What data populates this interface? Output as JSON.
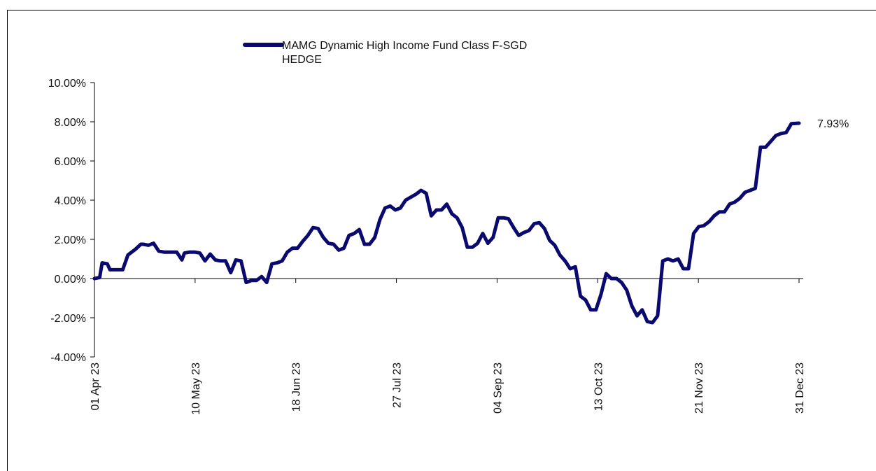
{
  "chart_data": {
    "type": "line",
    "title": "",
    "xlabel": "",
    "ylabel": "",
    "ylim": [
      -4,
      10
    ],
    "y_ticks": [
      10,
      8,
      6,
      4,
      2,
      0,
      -2,
      -4
    ],
    "y_tick_labels": [
      "10.00%",
      "8.00%",
      "6.00%",
      "4.00%",
      "2.00%",
      "0.00%",
      "-2.00%",
      "-4.00%"
    ],
    "x_tick_labels": [
      "01 Apr 23",
      "10 May 23",
      "18 Jun 23",
      "27 Jul 23",
      "04 Sep 23",
      "13 Oct 23",
      "21 Nov 23",
      "31 Dec 23"
    ],
    "x_range": [
      "2023-04-01",
      "2023-12-31"
    ],
    "legend": {
      "position": "top-center",
      "label_line1": "MAMG Dynamic High Income Fund Class F-SGD",
      "label_line2": "HEDGE"
    },
    "end_label": "7.93%",
    "color": "#0a0a6e",
    "grid": false,
    "series": [
      {
        "name": "MAMG Dynamic High Income Fund Class F-SGD HEDGE",
        "x": [
          "2023-04-01",
          "2023-04-03",
          "2023-04-04",
          "2023-04-06",
          "2023-04-07",
          "2023-04-10",
          "2023-04-12",
          "2023-04-14",
          "2023-04-17",
          "2023-04-19",
          "2023-04-20",
          "2023-04-22",
          "2023-04-24",
          "2023-04-26",
          "2023-04-28",
          "2023-05-01",
          "2023-05-03",
          "2023-05-05",
          "2023-05-06",
          "2023-05-08",
          "2023-05-10",
          "2023-05-12",
          "2023-05-14",
          "2023-05-16",
          "2023-05-18",
          "2023-05-20",
          "2023-05-22",
          "2023-05-24",
          "2023-05-26",
          "2023-05-28",
          "2023-05-30",
          "2023-06-01",
          "2023-06-03",
          "2023-06-05",
          "2023-06-07",
          "2023-06-09",
          "2023-06-11",
          "2023-06-13",
          "2023-06-15",
          "2023-06-17",
          "2023-06-19",
          "2023-06-21",
          "2023-06-23",
          "2023-06-25",
          "2023-06-27",
          "2023-06-29",
          "2023-07-01",
          "2023-07-03",
          "2023-07-05",
          "2023-07-07",
          "2023-07-09",
          "2023-07-11",
          "2023-07-13",
          "2023-07-15",
          "2023-07-17",
          "2023-07-19",
          "2023-07-21",
          "2023-07-23",
          "2023-07-25",
          "2023-07-27",
          "2023-07-29",
          "2023-07-31",
          "2023-08-02",
          "2023-08-04",
          "2023-08-06",
          "2023-08-08",
          "2023-08-10",
          "2023-08-12",
          "2023-08-14",
          "2023-08-16",
          "2023-08-18",
          "2023-08-20",
          "2023-08-22",
          "2023-08-24",
          "2023-08-26",
          "2023-08-28",
          "2023-08-30",
          "2023-09-01",
          "2023-09-03",
          "2023-09-05",
          "2023-09-07",
          "2023-09-09",
          "2023-09-11",
          "2023-09-13",
          "2023-09-15",
          "2023-09-17",
          "2023-09-19",
          "2023-09-21",
          "2023-09-23",
          "2023-09-25",
          "2023-09-27",
          "2023-09-29",
          "2023-10-01",
          "2023-10-03",
          "2023-10-05",
          "2023-10-07",
          "2023-10-09",
          "2023-10-11",
          "2023-10-13",
          "2023-10-15",
          "2023-10-17",
          "2023-10-19",
          "2023-10-21",
          "2023-10-23",
          "2023-10-25",
          "2023-10-27",
          "2023-10-29",
          "2023-10-31",
          "2023-11-02",
          "2023-11-04",
          "2023-11-06",
          "2023-11-08",
          "2023-11-10",
          "2023-11-12",
          "2023-11-14",
          "2023-11-16",
          "2023-11-18",
          "2023-11-20",
          "2023-11-22",
          "2023-11-24",
          "2023-11-26",
          "2023-11-28",
          "2023-11-30",
          "2023-12-02",
          "2023-12-04",
          "2023-12-06",
          "2023-12-08",
          "2023-12-10",
          "2023-12-12",
          "2023-12-14",
          "2023-12-16",
          "2023-12-18",
          "2023-12-20",
          "2023-12-22",
          "2023-12-24",
          "2023-12-26",
          "2023-12-28",
          "2023-12-31"
        ],
        "values": [
          0.0,
          0.05,
          0.8,
          0.75,
          0.45,
          0.45,
          0.45,
          1.2,
          1.5,
          1.75,
          1.75,
          1.7,
          1.8,
          1.4,
          1.35,
          1.35,
          1.35,
          0.95,
          1.3,
          1.35,
          1.35,
          1.3,
          0.9,
          1.25,
          0.95,
          0.9,
          0.9,
          0.3,
          0.95,
          0.9,
          -0.2,
          -0.1,
          -0.1,
          0.1,
          -0.2,
          0.75,
          0.8,
          0.9,
          1.35,
          1.55,
          1.55,
          1.9,
          2.2,
          2.6,
          2.55,
          2.1,
          1.8,
          1.75,
          1.45,
          1.55,
          2.2,
          2.3,
          2.5,
          1.75,
          1.75,
          2.1,
          3.0,
          3.6,
          3.7,
          3.5,
          3.6,
          4.0,
          4.15,
          4.3,
          4.5,
          4.35,
          3.2,
          3.5,
          3.5,
          3.8,
          3.3,
          3.1,
          2.6,
          1.6,
          1.6,
          1.8,
          2.3,
          1.8,
          2.1,
          3.1,
          3.1,
          3.05,
          2.6,
          2.2,
          2.35,
          2.45,
          2.8,
          2.85,
          2.55,
          1.95,
          1.7,
          1.2,
          0.9,
          0.5,
          0.6,
          -0.9,
          -1.1,
          -1.6,
          -1.6,
          -0.8,
          0.25,
          0.0,
          0.0,
          -0.2,
          -0.6,
          -1.4,
          -1.9,
          -1.6,
          -2.2,
          -2.25,
          -1.9,
          0.9,
          1.0,
          0.9,
          1.0,
          0.5,
          0.5,
          2.3,
          2.65,
          2.7,
          2.9,
          3.2,
          3.4,
          3.4,
          3.8,
          3.9,
          4.1,
          4.4,
          4.5,
          4.6,
          6.7,
          6.7,
          7.0,
          7.3,
          7.4,
          7.45,
          7.9,
          7.93
        ]
      }
    ]
  }
}
